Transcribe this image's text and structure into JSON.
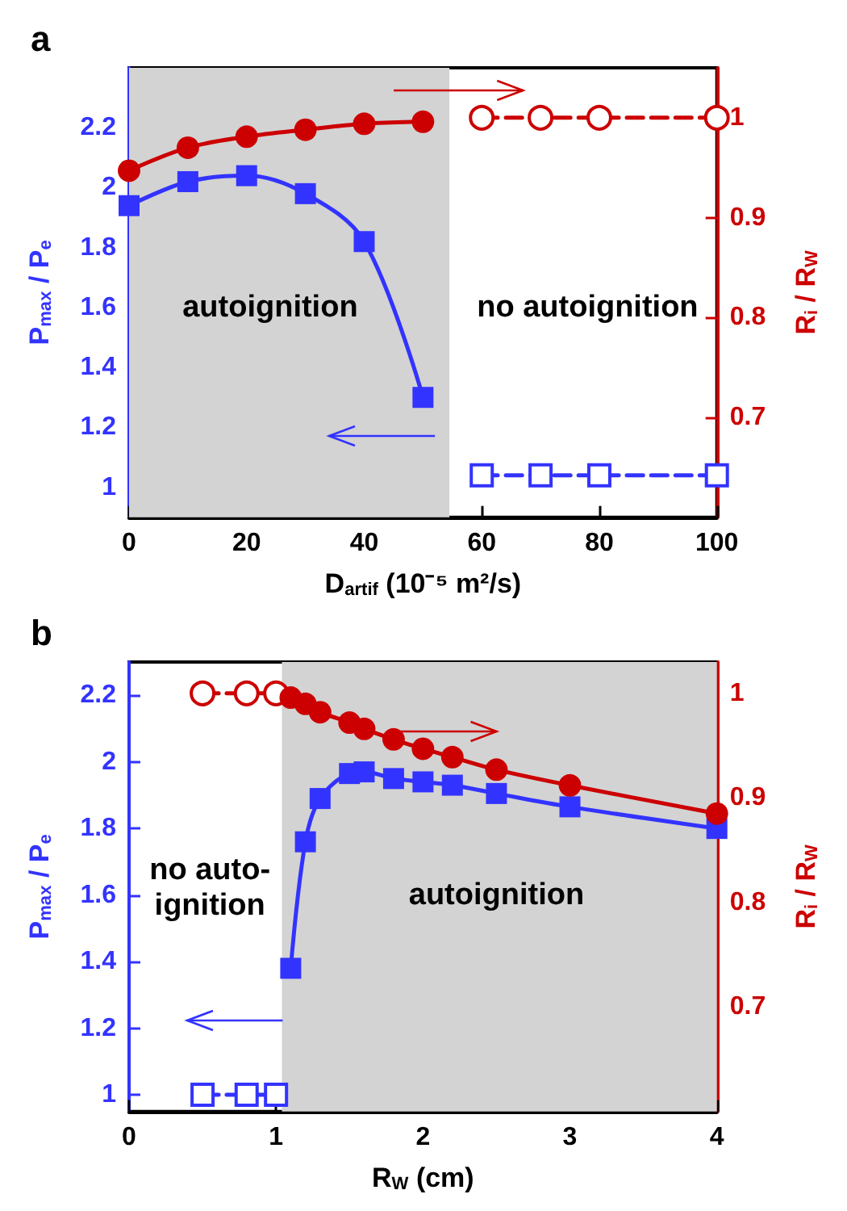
{
  "chart_data": [
    {
      "type": "line",
      "title": "a",
      "xlabel": "D$_{artif}$ (10⁻⁵ m²/s)",
      "ylabel": "P$_{max}$ / P$_{e}$",
      "y2label": "R$_{i}$ / R$_{W}$",
      "xlim": [
        0,
        100
      ],
      "xticks": [
        0,
        20,
        40,
        60,
        80,
        100
      ],
      "ylim": [
        0.9,
        2.4
      ],
      "yticks": [
        1,
        1.2,
        1.4,
        1.6,
        1.8,
        2,
        2.2
      ],
      "y2lim": [
        0.6,
        1.05
      ],
      "y2ticks": [
        0.7,
        0.8,
        0.9,
        1
      ],
      "grid": false,
      "series": [
        {
          "color": "#3333ff",
          "marker": "square",
          "line_style": "solid",
          "x": [
            0,
            10,
            20,
            30,
            40,
            50
          ],
          "values": [
            1.94,
            2.02,
            2.04,
            1.98,
            1.82,
            1.3
          ]
        },
        {
          "color": "#3333ff",
          "marker": "square",
          "line_style": "dashed",
          "x": [
            60,
            70,
            80,
            100
          ],
          "values": [
            1.04,
            1.04,
            1.04,
            1.04
          ]
        },
        {
          "color": "#cc0000",
          "marker": "circle",
          "line_style": "solid",
          "axis": "y2",
          "x": [
            0,
            10,
            20,
            30,
            40,
            50
          ],
          "values": [
            0.947,
            0.97,
            0.981,
            0.988,
            0.994,
            0.996
          ]
        },
        {
          "color": "#cc0000",
          "marker": "circle",
          "line_style": "dashed",
          "axis": "y2",
          "x": [
            60,
            70,
            80,
            100
          ],
          "values": [
            1,
            1,
            1,
            1
          ]
        }
      ],
      "bands": [
        {
          "axis": "x",
          "from": 0,
          "to": 54.5,
          "color": "#d3d3d3"
        }
      ],
      "annotations": [
        "autoignition",
        "no autoignition"
      ]
    },
    {
      "type": "line",
      "title": "b",
      "xlabel": "R$_{W}$ (cm)",
      "ylabel": "P$_{max}$ / P$_{e}$",
      "y2label": "R$_{i}$ / R$_{W}$",
      "xlim": [
        0,
        4
      ],
      "xticks": [
        0,
        1,
        2,
        3,
        4
      ],
      "ylim": [
        0.95,
        2.3
      ],
      "yticks": [
        1,
        1.2,
        1.4,
        1.6,
        1.8,
        2,
        2.2
      ],
      "y2lim": [
        0.6,
        1.03
      ],
      "y2ticks": [
        0.7,
        0.8,
        0.9,
        1
      ],
      "grid": false,
      "series": [
        {
          "color": "#3333ff",
          "marker": "square",
          "line_style": "dashed",
          "x": [
            0.5,
            0.8,
            1.0
          ],
          "values": [
            1,
            1,
            1
          ]
        },
        {
          "color": "#3333ff",
          "marker": "square",
          "line_style": "solid",
          "x": [
            1.1,
            1.2,
            1.3,
            1.5,
            1.6,
            1.8,
            2.0,
            2.2,
            2.5,
            3.0,
            4.0
          ],
          "values": [
            1.38,
            1.76,
            1.89,
            1.965,
            1.97,
            1.95,
            1.94,
            1.93,
            1.905,
            1.865,
            1.8
          ]
        },
        {
          "color": "#cc0000",
          "marker": "circle",
          "line_style": "dashed",
          "axis": "y2",
          "x": [
            0.5,
            0.8,
            1.0
          ],
          "values": [
            1,
            1,
            1
          ]
        },
        {
          "color": "#cc0000",
          "marker": "circle",
          "line_style": "solid",
          "axis": "y2",
          "x": [
            1.1,
            1.2,
            1.3,
            1.5,
            1.6,
            1.8,
            2.0,
            2.2,
            2.5,
            3.0,
            4.0
          ],
          "values": [
            0.996,
            0.99,
            0.982,
            0.972,
            0.966,
            0.956,
            0.947,
            0.939,
            0.927,
            0.912,
            0.885
          ]
        }
      ],
      "bands": [
        {
          "axis": "x",
          "from": 1.04,
          "to": 4,
          "color": "#d3d3d3"
        }
      ],
      "annotations": [
        "no auto-\nignition",
        "autoignition"
      ]
    }
  ]
}
